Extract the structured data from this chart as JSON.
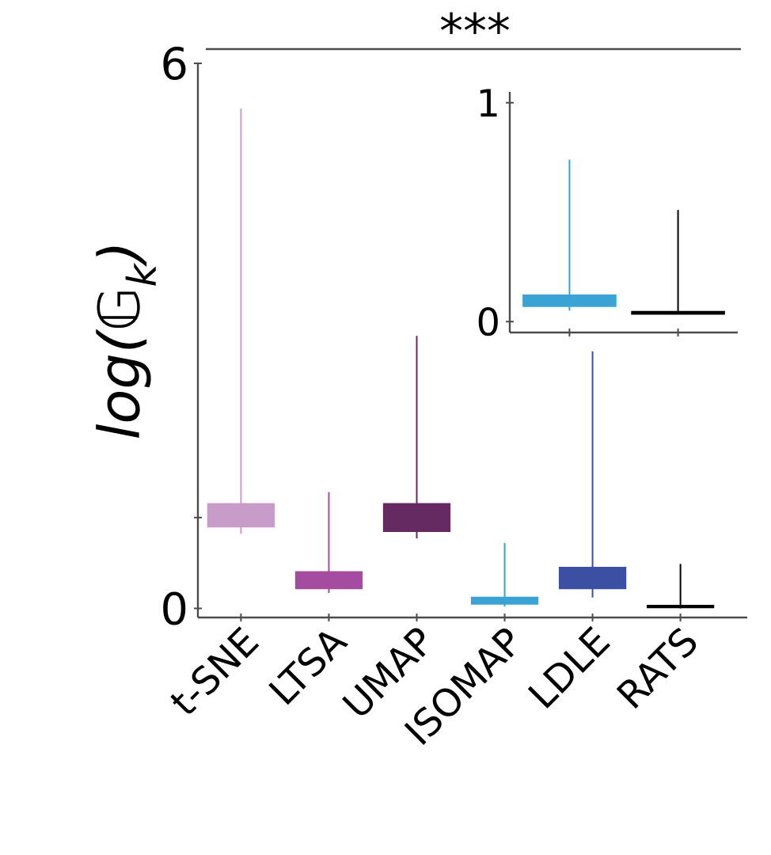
{
  "chart_data": [
    {
      "type": "box",
      "ylabel": "log(𝔾$_{k}$)",
      "categories": [
        "t-SNE",
        "LTSA",
        "UMAP",
        "ISOMAP",
        "LDLE",
        "RATS"
      ],
      "boxes": [
        {
          "low": 0.82,
          "q1": 0.9,
          "median": 1.0,
          "q3": 1.15,
          "high": 5.5
        },
        {
          "low": 0.17,
          "q1": 0.22,
          "median": 0.3,
          "q3": 0.4,
          "high": 1.28
        },
        {
          "low": 0.77,
          "q1": 0.85,
          "median": 0.95,
          "q3": 1.15,
          "high": 3.0
        },
        {
          "low": 0.02,
          "q1": 0.05,
          "median": 0.08,
          "q3": 0.12,
          "high": 0.72
        },
        {
          "low": 0.12,
          "q1": 0.22,
          "median": 0.3,
          "q3": 0.45,
          "high": 2.83
        },
        {
          "low": 0.0,
          "q1": 0.01,
          "median": 0.02,
          "q3": 0.03,
          "high": 0.49
        }
      ],
      "colors": [
        "#c89cc8",
        "#a54ca0",
        "#652a62",
        "#3aa3d4",
        "#3b4fa3",
        "#000000"
      ],
      "ylim": [
        -0.1,
        6
      ],
      "yticks": [
        0,
        {
          "value": 1,
          "label": null
        },
        6
      ],
      "annotations": [
        "***"
      ]
    },
    {
      "type": "box",
      "categories": [
        null,
        null
      ],
      "boxes": [
        {
          "low": 0.05,
          "q1": 0.07,
          "median": 0.09,
          "q3": 0.12,
          "high": 0.74
        },
        {
          "low": 0.035,
          "q1": 0.035,
          "median": 0.04,
          "q3": 0.045,
          "high": 0.51
        }
      ],
      "colors": [
        "#3aa3d4",
        "#000000"
      ],
      "ylim": [
        -0.05,
        1.05
      ],
      "yticks": [
        0,
        1
      ],
      "tick_labels": "y"
    }
  ]
}
